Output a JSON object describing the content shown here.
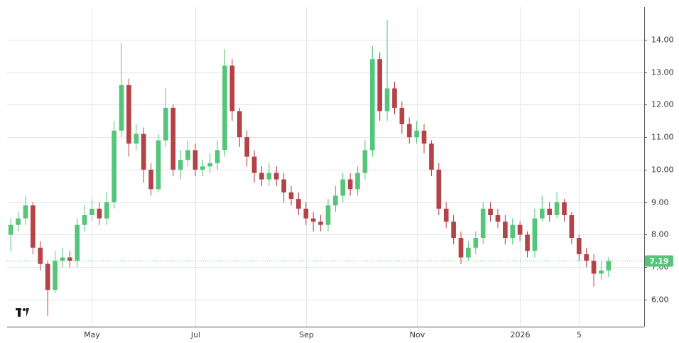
{
  "chart_data": {
    "type": "candlestick",
    "categories": [
      null,
      null,
      null,
      null,
      null,
      null,
      null,
      null,
      null,
      null,
      null,
      "May",
      null,
      null,
      null,
      null,
      null,
      null,
      null,
      null,
      null,
      null,
      null,
      null,
      null,
      "Jul",
      null,
      null,
      null,
      null,
      null,
      null,
      null,
      null,
      null,
      null,
      null,
      null,
      null,
      null,
      "Sep",
      null,
      null,
      null,
      null,
      null,
      null,
      null,
      null,
      null,
      null,
      null,
      null,
      null,
      null,
      "Nov",
      null,
      null,
      null,
      null,
      null,
      null,
      null,
      null,
      null,
      null,
      null,
      null,
      null,
      "2026",
      null,
      null,
      null,
      null,
      null,
      null,
      null,
      "5",
      null,
      null,
      null,
      null
    ],
    "open": [
      8.0,
      8.3,
      8.5,
      8.9,
      7.6,
      7.1,
      6.3,
      7.2,
      7.3,
      7.2,
      8.3,
      8.6,
      8.8,
      8.5,
      9.0,
      11.2,
      12.6,
      10.8,
      11.1,
      10.0,
      9.4,
      10.9,
      11.9,
      10.0,
      10.3,
      10.6,
      10.0,
      10.1,
      10.2,
      10.6,
      13.2,
      11.8,
      11.0,
      10.4,
      9.9,
      9.7,
      9.9,
      9.7,
      9.3,
      9.1,
      8.8,
      8.5,
      8.4,
      8.3,
      8.9,
      9.2,
      9.7,
      9.4,
      9.9,
      10.6,
      13.4,
      11.8,
      12.5,
      11.9,
      11.4,
      11.0,
      11.2,
      10.8,
      10.0,
      8.8,
      8.4,
      7.9,
      7.3,
      7.6,
      7.9,
      8.8,
      8.6,
      8.4,
      7.9,
      8.3,
      8.0,
      7.5,
      8.5,
      8.8,
      8.6,
      9.0,
      8.6,
      7.9,
      7.4,
      7.2,
      6.8,
      6.9
    ],
    "high": [
      8.5,
      8.7,
      9.2,
      9.0,
      7.8,
      7.2,
      7.5,
      7.6,
      7.5,
      8.5,
      8.9,
      9.1,
      9.0,
      9.3,
      11.5,
      13.9,
      12.8,
      11.4,
      11.3,
      10.2,
      11.1,
      12.5,
      12.0,
      10.6,
      10.9,
      10.8,
      10.3,
      10.5,
      10.9,
      13.7,
      13.4,
      11.9,
      11.2,
      10.6,
      10.1,
      10.2,
      10.1,
      9.9,
      9.5,
      9.3,
      9.0,
      8.7,
      8.6,
      9.1,
      9.5,
      9.9,
      9.9,
      10.1,
      10.9,
      13.8,
      13.6,
      14.6,
      12.7,
      12.1,
      11.6,
      11.5,
      11.4,
      10.9,
      10.2,
      9.0,
      8.6,
      8.1,
      7.8,
      8.1,
      9.0,
      9.0,
      8.8,
      8.6,
      8.5,
      8.4,
      8.1,
      8.8,
      9.2,
      9.0,
      9.3,
      9.1,
      8.7,
      8.0,
      7.6,
      7.4,
      7.2,
      7.3
    ],
    "low": [
      7.5,
      8.1,
      8.3,
      7.4,
      6.9,
      5.5,
      6.2,
      7.0,
      7.0,
      7.0,
      8.1,
      8.4,
      8.3,
      8.3,
      8.8,
      11.0,
      10.4,
      10.6,
      9.6,
      9.2,
      9.3,
      10.7,
      9.8,
      9.7,
      10.1,
      9.8,
      9.8,
      9.9,
      10.0,
      10.4,
      11.5,
      10.7,
      10.1,
      9.6,
      9.5,
      9.5,
      9.5,
      9.0,
      8.9,
      8.6,
      8.3,
      8.1,
      8.1,
      8.1,
      8.7,
      9.0,
      9.2,
      9.2,
      9.7,
      10.4,
      11.5,
      11.5,
      11.7,
      11.1,
      10.8,
      10.8,
      10.5,
      9.8,
      8.6,
      8.2,
      7.7,
      7.1,
      7.2,
      7.4,
      7.7,
      8.4,
      8.2,
      7.7,
      7.7,
      7.8,
      7.3,
      7.3,
      8.4,
      8.4,
      8.5,
      8.4,
      7.7,
      7.2,
      7.0,
      6.4,
      6.6,
      6.7
    ],
    "close": [
      8.3,
      8.5,
      8.9,
      7.6,
      7.1,
      6.3,
      7.2,
      7.3,
      7.2,
      8.3,
      8.6,
      8.8,
      8.5,
      9.0,
      11.2,
      12.6,
      10.8,
      11.1,
      10.0,
      9.4,
      10.9,
      11.9,
      10.0,
      10.3,
      10.6,
      10.0,
      10.1,
      10.2,
      10.6,
      13.2,
      11.8,
      11.0,
      10.4,
      9.9,
      9.7,
      9.9,
      9.7,
      9.3,
      9.1,
      8.8,
      8.5,
      8.4,
      8.3,
      8.9,
      9.2,
      9.7,
      9.4,
      9.9,
      10.6,
      13.4,
      11.8,
      12.5,
      11.9,
      11.4,
      11.0,
      11.2,
      10.8,
      10.0,
      8.8,
      8.4,
      7.9,
      7.3,
      7.6,
      7.9,
      8.8,
      8.6,
      8.4,
      7.9,
      8.3,
      8.0,
      7.5,
      8.5,
      8.8,
      8.6,
      9.0,
      8.6,
      7.9,
      7.4,
      7.2,
      6.8,
      6.9,
      7.19
    ],
    "up_color": "#55c57a",
    "down_color": "#b54246",
    "ylim": [
      5.17,
      15.0
    ],
    "yticks": [
      {
        "value": 6,
        "label": "6.00"
      },
      {
        "value": 7,
        "label": "7.00"
      },
      {
        "value": 8,
        "label": "8.00"
      },
      {
        "value": 9,
        "label": "9.00"
      },
      {
        "value": 10,
        "label": "10.00"
      },
      {
        "value": 11,
        "label": "11.00"
      },
      {
        "value": 12,
        "label": "12.00"
      },
      {
        "value": 13,
        "label": "13.00"
      },
      {
        "value": 14,
        "label": "14.00"
      }
    ],
    "grid": true
  }
}
